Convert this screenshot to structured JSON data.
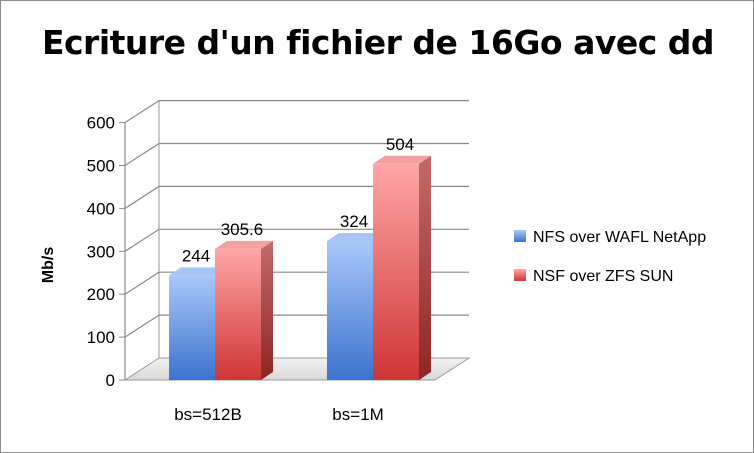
{
  "chart_data": {
    "type": "bar",
    "title": "Ecriture d'un fichier de 16Go avec dd",
    "xlabel": "",
    "ylabel": "Mb/s",
    "ylim": [
      0,
      600
    ],
    "yticks": [
      0,
      100,
      200,
      300,
      400,
      500,
      600
    ],
    "categories": [
      "bs=512B",
      "bs=1M"
    ],
    "series": [
      {
        "name": "NFS over WAFL NetApp",
        "values": [
          244,
          324
        ],
        "color": "#6f9fe8"
      },
      {
        "name": "NSF over ZFS SUN",
        "values": [
          305.6,
          504
        ],
        "color": "#e05a5a"
      }
    ],
    "data_labels": [
      [
        "244",
        "324"
      ],
      [
        "305.6",
        "504"
      ]
    ],
    "grid": true,
    "legend": "right",
    "style": "3d-column"
  }
}
